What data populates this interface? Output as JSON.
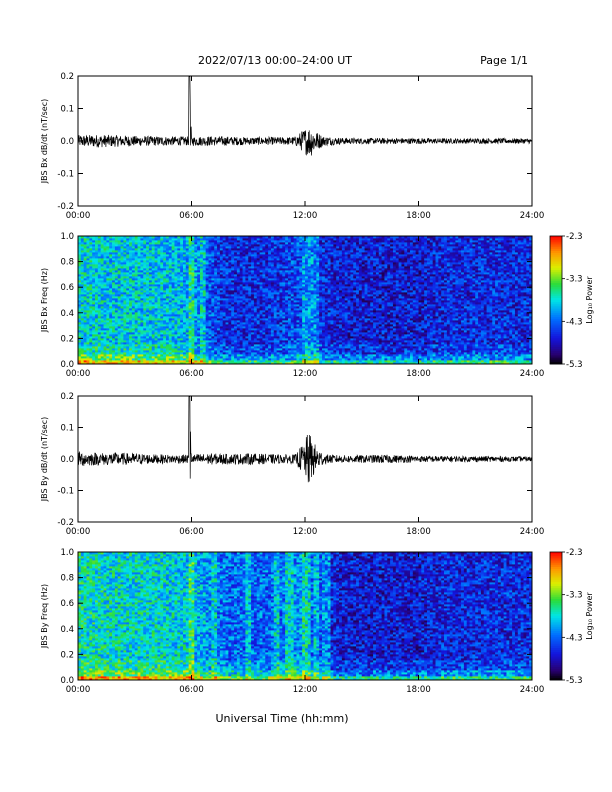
{
  "header": {
    "title": "2022/07/13  00:00–24:00 UT",
    "page": "Page 1/1"
  },
  "footer": {
    "xlabel": "Universal Time (hh:mm)"
  },
  "chart_data": [
    {
      "type": "line",
      "ylabel": "JBS Bx dB/dt (nT/sec)",
      "xlim": [
        0,
        24
      ],
      "ylim": [
        -0.2,
        0.2
      ],
      "x_ticks": [
        "00:00",
        "06:00",
        "12:00",
        "18:00",
        "24:00"
      ],
      "y_ticks": [
        "0.2",
        "0.1",
        "0.0",
        "-0.1",
        "-0.2"
      ],
      "series": [
        {
          "x": [
            0,
            1,
            2,
            3,
            4,
            5,
            5.85,
            5.9,
            6,
            7,
            8,
            9,
            10,
            11,
            11.5,
            12,
            12.3,
            12.6,
            13,
            14,
            15,
            16,
            17,
            18,
            19,
            20,
            21,
            22,
            23,
            24
          ],
          "envelope": [
            0.018,
            0.02,
            0.018,
            0.016,
            0.015,
            0.014,
            0.014,
            0.2,
            0.014,
            0.015,
            0.014,
            0.012,
            0.012,
            0.012,
            0.014,
            0.04,
            0.05,
            0.03,
            0.015,
            0.01,
            0.009,
            0.009,
            0.009,
            0.009,
            0.008,
            0.008,
            0.008,
            0.008,
            0.008,
            0.008
          ]
        }
      ]
    },
    {
      "type": "heatmap",
      "ylabel": "JBS Bx Freq (Hz)",
      "colorbar_label": "Log₁₀ Power",
      "xlim": [
        0,
        24
      ],
      "ylim": [
        0,
        1.0
      ],
      "x_ticks": [
        "00:00",
        "06:00",
        "12:00",
        "18:00",
        "24:00"
      ],
      "y_ticks": [
        "1.0",
        "0.8",
        "0.6",
        "0.4",
        "0.2",
        "0.0"
      ],
      "colorbar_ticks": [
        "-2.3",
        "-3.3",
        "-4.3",
        "-5.3"
      ],
      "clim": [
        -5.3,
        -2.3
      ],
      "time_hours": [
        0,
        2,
        4,
        6,
        7.3,
        8,
        10,
        12,
        13,
        14,
        16,
        18,
        20,
        22,
        24
      ],
      "mean_log_power": [
        -3.8,
        -3.9,
        -3.9,
        -4.0,
        -4.5,
        -4.6,
        -4.6,
        -4.4,
        -4.6,
        -4.7,
        -4.7,
        -4.7,
        -4.6,
        -4.6,
        -4.6
      ]
    },
    {
      "type": "line",
      "ylabel": "JBS By dB/dt (nT/sec)",
      "xlim": [
        0,
        24
      ],
      "ylim": [
        -0.2,
        0.2
      ],
      "x_ticks": [
        "00:00",
        "06:00",
        "12:00",
        "18:00",
        "24:00"
      ],
      "y_ticks": [
        "0.2",
        "0.1",
        "0.0",
        "-0.1",
        "-0.2"
      ],
      "series": [
        {
          "x": [
            0,
            1,
            2,
            3,
            4,
            5,
            5.85,
            5.9,
            6,
            7,
            8,
            9,
            10,
            11,
            11.5,
            12,
            12.2,
            12.5,
            13,
            14,
            15,
            16,
            17,
            18,
            19,
            20,
            21,
            22,
            23,
            24
          ],
          "envelope": [
            0.025,
            0.02,
            0.02,
            0.018,
            0.015,
            0.014,
            0.014,
            0.2,
            0.014,
            0.018,
            0.016,
            0.018,
            0.016,
            0.014,
            0.015,
            0.06,
            0.09,
            0.05,
            0.015,
            0.012,
            0.012,
            0.014,
            0.012,
            0.01,
            0.01,
            0.009,
            0.009,
            0.009,
            0.008,
            0.008
          ]
        }
      ]
    },
    {
      "type": "heatmap",
      "ylabel": "JBS By Freq (Hz)",
      "colorbar_label": "Log₁₀ Power",
      "xlim": [
        0,
        24
      ],
      "ylim": [
        0,
        1.0
      ],
      "x_ticks": [
        "00:00",
        "06:00",
        "12:00",
        "18:00",
        "24:00"
      ],
      "y_ticks": [
        "1.0",
        "0.8",
        "0.6",
        "0.4",
        "0.2",
        "0.0"
      ],
      "colorbar_ticks": [
        "-2.3",
        "-3.3",
        "-4.3",
        "-5.3"
      ],
      "clim": [
        -5.3,
        -2.3
      ],
      "time_hours": [
        0,
        2,
        4,
        6,
        7.3,
        8,
        10,
        12,
        13,
        14,
        16,
        18,
        20,
        22,
        24
      ],
      "mean_log_power": [
        -3.7,
        -3.8,
        -3.8,
        -3.9,
        -4.2,
        -4.3,
        -4.3,
        -4.1,
        -4.5,
        -4.7,
        -4.7,
        -4.7,
        -4.6,
        -4.6,
        -4.6
      ]
    }
  ]
}
